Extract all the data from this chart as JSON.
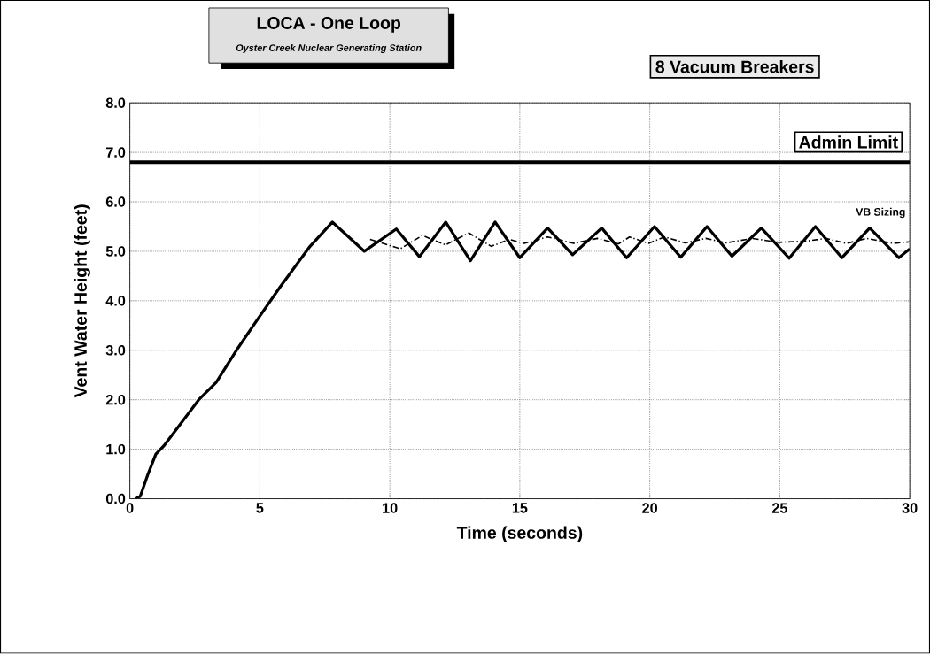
{
  "chart_data": {
    "type": "line",
    "title": "LOCA - One Loop",
    "subtitle": "Oyster Creek Nuclear Generating Station",
    "xlabel": "Time (seconds)",
    "ylabel": "Vent Water Height (feet)",
    "annotations": [
      "8 Vacuum Breakers"
    ],
    "xlim": [
      0,
      30
    ],
    "ylim": [
      0,
      8
    ],
    "xticks": [
      0,
      5,
      10,
      15,
      20,
      25,
      30
    ],
    "yticks": [
      {
        "value": 0,
        "label": "0.0"
      },
      {
        "value": 1,
        "label": "1.0"
      },
      {
        "value": 2,
        "label": "2.0"
      },
      {
        "value": 3,
        "label": "3.0"
      },
      {
        "value": 4,
        "label": "4.0"
      },
      {
        "value": 5,
        "label": "5.0"
      },
      {
        "value": 6,
        "label": "6.0"
      },
      {
        "value": 7,
        "label": "7.0"
      },
      {
        "value": 8,
        "label": "8.0"
      }
    ],
    "grid": true,
    "marker": "none",
    "ref_lines": [
      {
        "axis": "y",
        "value": 6.8,
        "label": "Admin Limit",
        "color": "#000000"
      }
    ],
    "series": [
      {
        "name": "VB Sizing",
        "color": "#000000",
        "line_style": "solid",
        "x": [
          0.2,
          0.4,
          0.7,
          1.0,
          1.31,
          2.65,
          3.32,
          4.1,
          5.0,
          5.78,
          6.9,
          7.79,
          9.02,
          10.25,
          11.14,
          12.15,
          13.1,
          14.05,
          15.0,
          16.07,
          17.03,
          18.15,
          19.11,
          20.18,
          21.19,
          22.2,
          23.16,
          24.29,
          25.36,
          26.37,
          27.39,
          28.46,
          29.58,
          30
        ],
        "values": [
          0,
          0.05,
          0.5,
          0.9,
          1.07,
          2.0,
          2.35,
          3.0,
          3.69,
          4.28,
          5.08,
          5.59,
          5.0,
          5.45,
          4.89,
          5.59,
          4.81,
          5.59,
          4.87,
          5.47,
          4.93,
          5.47,
          4.87,
          5.5,
          4.88,
          5.5,
          4.9,
          5.47,
          4.86,
          5.5,
          4.87,
          5.47,
          4.87,
          5.05
        ]
      },
      {
        "color": "#000000",
        "line_style": "dashed",
        "x": [
          9.24,
          10.4,
          11.25,
          12.14,
          13.04,
          13.9,
          14.6,
          15.17,
          16.07,
          17.08,
          17.98,
          18.8,
          19.22,
          19.95,
          20.57,
          21.36,
          22.15,
          22.94,
          23.95,
          24.97,
          26.09,
          26.77,
          27.56,
          28.34,
          29.36,
          30
        ],
        "values": [
          5.24,
          5.05,
          5.32,
          5.13,
          5.37,
          5.1,
          5.24,
          5.16,
          5.29,
          5.16,
          5.26,
          5.15,
          5.29,
          5.16,
          5.29,
          5.17,
          5.26,
          5.17,
          5.26,
          5.18,
          5.21,
          5.26,
          5.16,
          5.26,
          5.16,
          5.19
        ]
      }
    ]
  }
}
